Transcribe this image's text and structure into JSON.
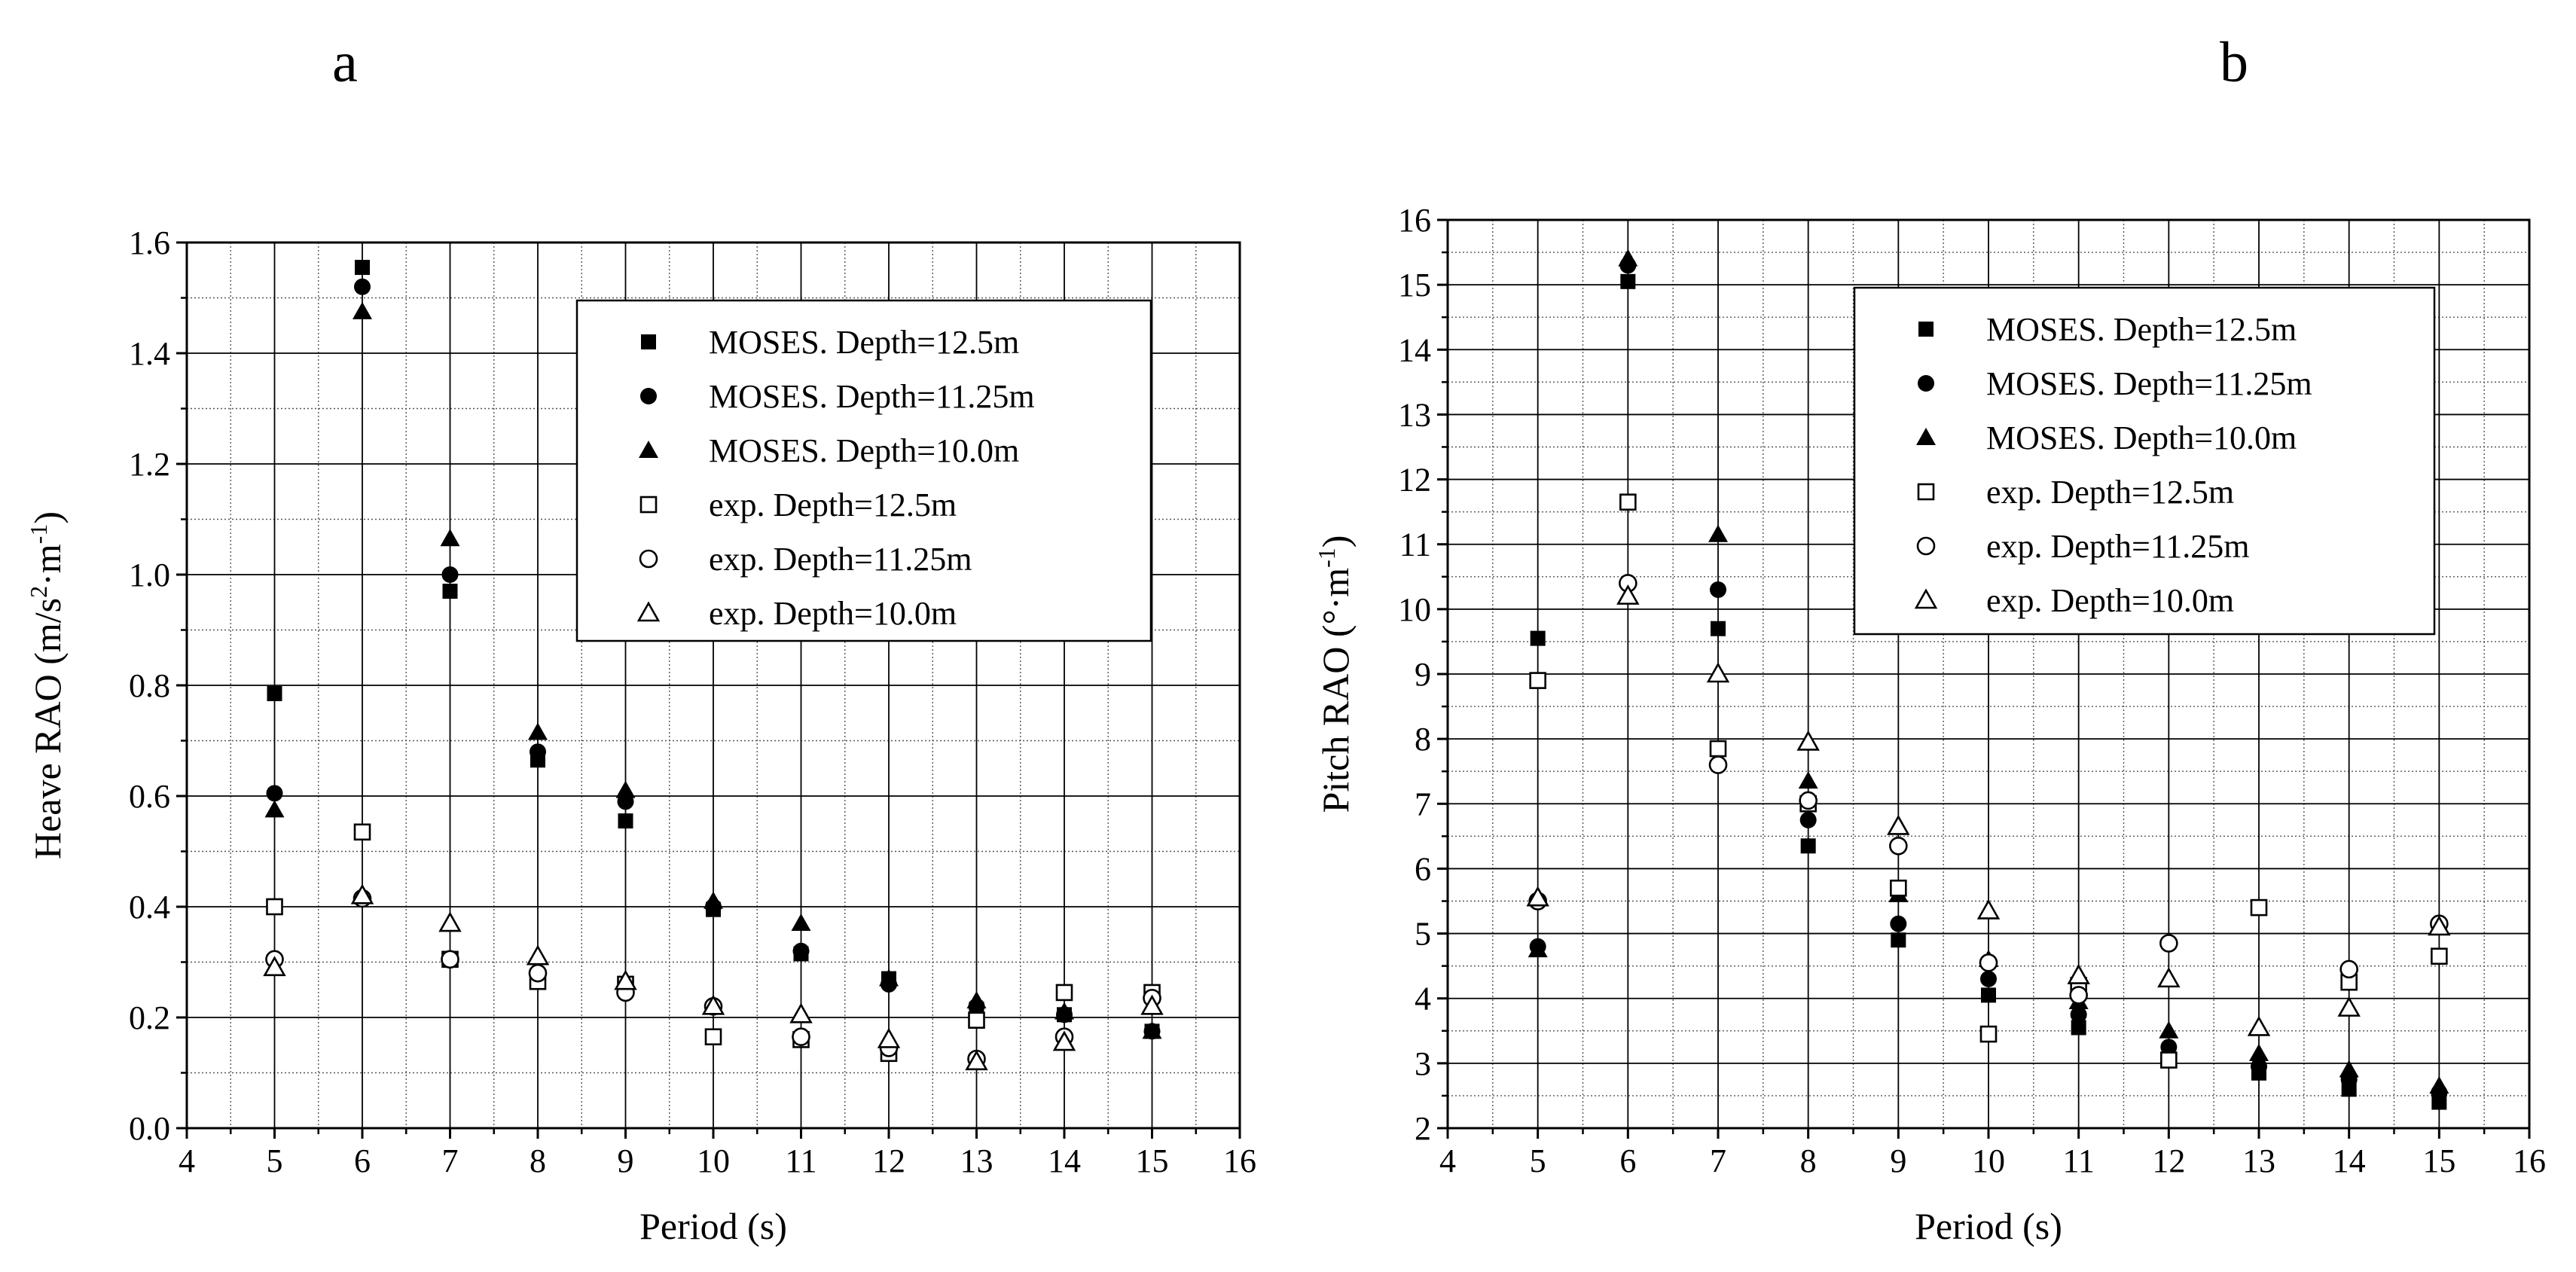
{
  "chart_data": [
    {
      "type": "scatter",
      "panel_label": "a",
      "xlabel": "Period (s)",
      "ylabel_main": "Heave RAO (m/s",
      "ylabel_sup1": "2",
      "ylabel_mid": "·m",
      "ylabel_sup2": "-1",
      "ylabel_end": ")",
      "xlim": [
        4,
        16
      ],
      "ylim": [
        0,
        1.6
      ],
      "xticks": [
        "4",
        "5",
        "6",
        "7",
        "8",
        "9",
        "10",
        "11",
        "12",
        "13",
        "14",
        "15",
        "16"
      ],
      "yticks": [
        "0.0",
        "0.2",
        "0.4",
        "0.6",
        "0.8",
        "1.0",
        "1.2",
        "1.4",
        "1.6"
      ],
      "grid": true,
      "legend_position": "top-right",
      "series": [
        {
          "name": "MOSES. Depth=12.5m",
          "marker": "square",
          "filled": true,
          "x": [
            5,
            6,
            7,
            8,
            9,
            10,
            11,
            12,
            13,
            14,
            15
          ],
          "y": [
            0.785,
            1.555,
            0.97,
            0.665,
            0.555,
            0.395,
            0.315,
            0.27,
            0.215,
            0.205,
            0.175
          ]
        },
        {
          "name": "MOSES. Depth=11.25m",
          "marker": "circle",
          "filled": true,
          "x": [
            5,
            6,
            7,
            8,
            9,
            10,
            11,
            12,
            13,
            14,
            15
          ],
          "y": [
            0.605,
            1.52,
            1.0,
            0.68,
            0.59,
            0.4,
            0.32,
            0.26,
            0.22,
            0.205,
            0.175
          ]
        },
        {
          "name": "MOSES. Depth=10.0m",
          "marker": "triangle",
          "filled": true,
          "x": [
            5,
            6,
            7,
            8,
            9,
            10,
            11,
            12,
            13,
            14,
            15
          ],
          "y": [
            0.575,
            1.475,
            1.065,
            0.715,
            0.61,
            0.41,
            0.37,
            0.27,
            0.23,
            0.21,
            0.175
          ]
        },
        {
          "name": "exp. Depth=12.5m",
          "marker": "square",
          "filled": false,
          "x": [
            5,
            6,
            7,
            8,
            9,
            10,
            11,
            12,
            13,
            14,
            15
          ],
          "y": [
            0.4,
            0.535,
            0.305,
            0.265,
            0.26,
            0.165,
            0.16,
            0.135,
            0.195,
            0.245,
            0.245
          ]
        },
        {
          "name": "exp. Depth=11.25m",
          "marker": "circle",
          "filled": false,
          "x": [
            5,
            6,
            7,
            8,
            9,
            10,
            11,
            12,
            13,
            14,
            15
          ],
          "y": [
            0.305,
            0.415,
            0.305,
            0.28,
            0.245,
            0.22,
            0.165,
            0.145,
            0.125,
            0.165,
            0.235
          ]
        },
        {
          "name": "exp. Depth=10.0m",
          "marker": "triangle",
          "filled": false,
          "x": [
            5,
            6,
            7,
            8,
            9,
            10,
            11,
            12,
            13,
            14,
            15
          ],
          "y": [
            0.29,
            0.42,
            0.37,
            0.31,
            0.265,
            0.22,
            0.205,
            0.16,
            0.12,
            0.155,
            0.22
          ]
        }
      ]
    },
    {
      "type": "scatter",
      "panel_label": "b",
      "xlabel": "Period (s)",
      "ylabel_main": "Pitch RAO (°·m",
      "ylabel_sup1": "",
      "ylabel_mid": "",
      "ylabel_sup2": "-1",
      "ylabel_end": ")",
      "xlim": [
        4,
        16
      ],
      "ylim": [
        2,
        16
      ],
      "xticks": [
        "4",
        "5",
        "6",
        "7",
        "8",
        "9",
        "10",
        "11",
        "12",
        "13",
        "14",
        "15",
        "16"
      ],
      "yticks": [
        "2",
        "3",
        "4",
        "5",
        "6",
        "7",
        "8",
        "9",
        "10",
        "11",
        "12",
        "13",
        "14",
        "15",
        "16"
      ],
      "grid": true,
      "legend_position": "top-right",
      "series": [
        {
          "name": "MOSES. Depth=12.5m",
          "marker": "square",
          "filled": true,
          "x": [
            5,
            6,
            7,
            8,
            9,
            10,
            11,
            12,
            13,
            14,
            15
          ],
          "y": [
            9.55,
            15.05,
            9.7,
            6.35,
            4.9,
            4.05,
            3.55,
            3.05,
            2.85,
            2.6,
            2.4
          ]
        },
        {
          "name": "MOSES. Depth=11.25m",
          "marker": "circle",
          "filled": true,
          "x": [
            5,
            6,
            7,
            8,
            9,
            10,
            11,
            12,
            13,
            14,
            15
          ],
          "y": [
            4.8,
            15.3,
            10.3,
            6.75,
            5.15,
            4.3,
            3.75,
            3.25,
            2.95,
            2.75,
            2.55
          ]
        },
        {
          "name": "MOSES. Depth=10.0m",
          "marker": "triangle",
          "filled": true,
          "x": [
            5,
            6,
            7,
            8,
            9,
            10,
            11,
            12,
            13,
            14,
            15
          ],
          "y": [
            4.75,
            15.4,
            11.15,
            7.35,
            5.6,
            4.6,
            3.95,
            3.5,
            3.15,
            2.9,
            2.65
          ]
        },
        {
          "name": "exp. Depth=12.5m",
          "marker": "square",
          "filled": false,
          "x": [
            5,
            6,
            7,
            8,
            9,
            10,
            11,
            12,
            13,
            14,
            15
          ],
          "y": [
            8.9,
            11.65,
            7.85,
            7.0,
            5.7,
            3.45,
            4.2,
            3.05,
            5.4,
            4.25,
            4.65
          ]
        },
        {
          "name": "exp. Depth=11.25m",
          "marker": "circle",
          "filled": false,
          "x": [
            5,
            6,
            7,
            8,
            9,
            10,
            11,
            12,
            13,
            14,
            15
          ],
          "y": [
            5.5,
            10.4,
            7.6,
            7.05,
            6.35,
            4.55,
            4.05,
            4.85,
            null,
            4.45,
            5.15
          ]
        },
        {
          "name": "exp. Depth=10.0m",
          "marker": "triangle",
          "filled": false,
          "x": [
            5,
            6,
            7,
            8,
            9,
            10,
            11,
            12,
            13,
            14,
            15
          ],
          "y": [
            5.55,
            10.2,
            9.0,
            7.95,
            6.65,
            5.35,
            4.35,
            4.3,
            3.55,
            3.85,
            5.1
          ]
        }
      ]
    }
  ]
}
